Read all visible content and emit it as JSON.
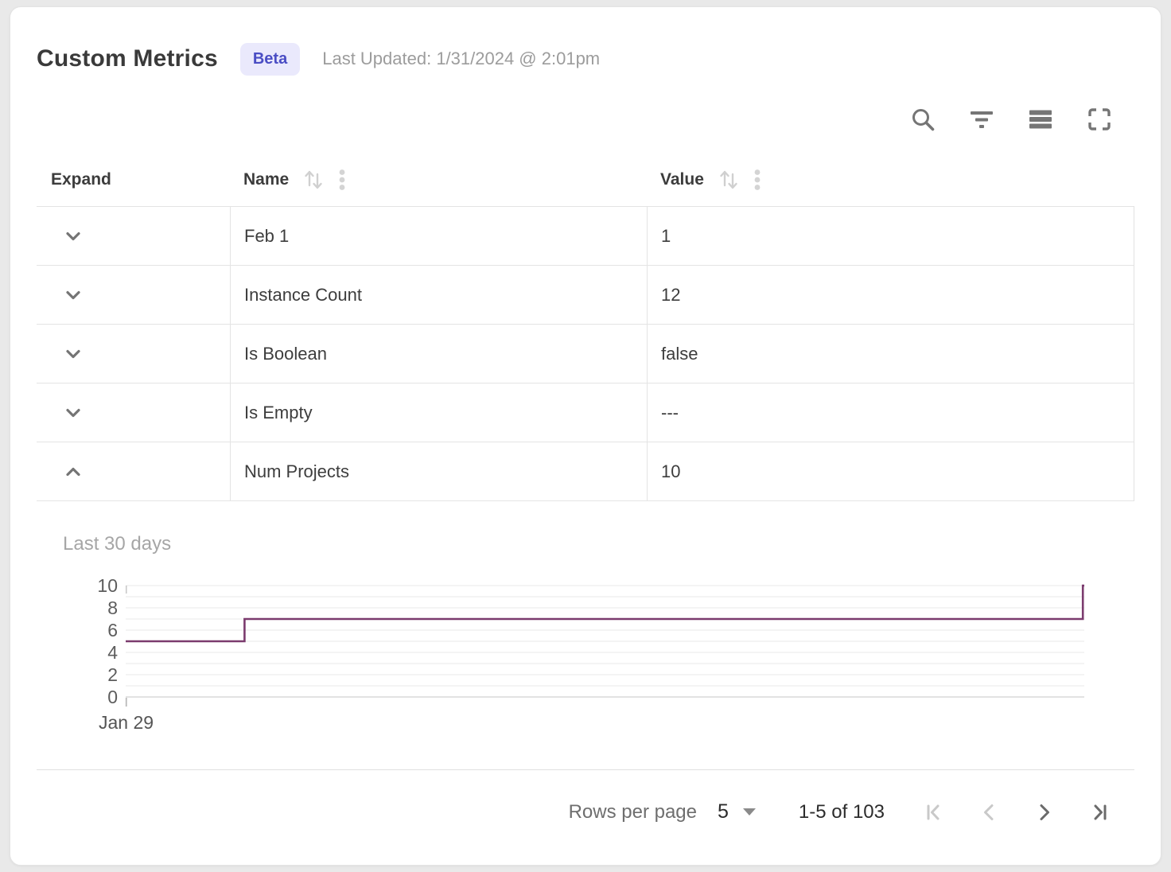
{
  "header": {
    "title": "Custom Metrics",
    "badge": "Beta",
    "last_updated": "Last Updated: 1/31/2024 @ 2:01pm"
  },
  "toolbar": {
    "icons": [
      "search",
      "filter",
      "density",
      "fullscreen"
    ]
  },
  "table": {
    "columns": [
      {
        "label": "Expand",
        "sortable": false
      },
      {
        "label": "Name",
        "sortable": true
      },
      {
        "label": "Value",
        "sortable": true
      }
    ],
    "rows": [
      {
        "name": "Feb 1",
        "value": "1",
        "expanded": false
      },
      {
        "name": "Instance Count",
        "value": "12",
        "expanded": false
      },
      {
        "name": "Is Boolean",
        "value": "false",
        "expanded": false
      },
      {
        "name": "Is Empty",
        "value": "---",
        "expanded": false
      },
      {
        "name": "Num Projects",
        "value": "10",
        "expanded": true
      }
    ]
  },
  "chart_data": {
    "type": "line",
    "step": true,
    "title": "Last 30 days",
    "series_name": "Num Projects",
    "ylim": [
      0,
      10
    ],
    "y_ticks": [
      0,
      2,
      4,
      6,
      8,
      10
    ],
    "x_tick_labels": [
      "Jan 29"
    ],
    "grid": true,
    "line_color": "#7b3b6e",
    "points": [
      {
        "x_frac": 0.0,
        "y": 5
      },
      {
        "x_frac": 0.124,
        "y": 5
      },
      {
        "x_frac": 0.124,
        "y": 7
      },
      {
        "x_frac": 0.9985,
        "y": 7
      },
      {
        "x_frac": 0.9985,
        "y": 10
      },
      {
        "x_frac": 1.0,
        "y": 10
      }
    ]
  },
  "footer": {
    "rows_per_page_label": "Rows per page",
    "rows_per_page_value": "5",
    "range_label": "1-5 of 103",
    "pagination": {
      "first_disabled": true,
      "prev_disabled": true,
      "next_disabled": false,
      "last_disabled": false
    }
  },
  "colors": {
    "badge_bg": "#eae9fc",
    "badge_text": "#4a4dc4",
    "chart_line": "#7b3b6e",
    "icon_gray": "#757575"
  }
}
